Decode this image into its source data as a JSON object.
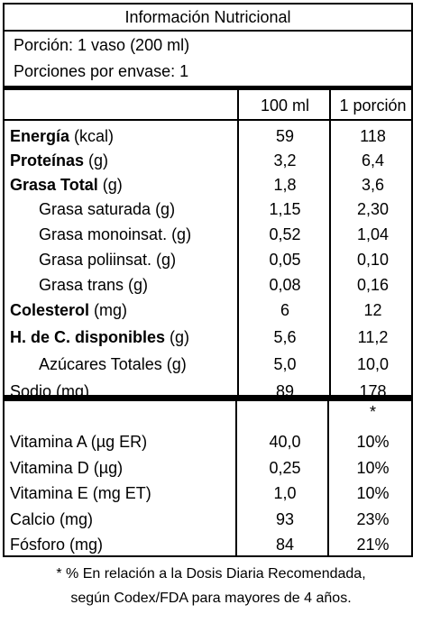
{
  "label": {
    "title": "Información Nutricional",
    "serving_size": "Porción:  1 vaso (200 ml)",
    "servings_per_container": "Porciones por envase:  1",
    "col_100ml": "100 ml",
    "col_portion": "1 porción",
    "nutrients": [
      {
        "name_bold": "Energía",
        "name_rest": " (kcal)",
        "v100": "59",
        "vport": "118"
      },
      {
        "name_bold": "Proteínas",
        "name_rest": " (g)",
        "v100": "3,2",
        "vport": "6,4"
      },
      {
        "name_bold": "Grasa Total",
        "name_rest": " (g)",
        "v100": "1,8",
        "vport": "3,6"
      },
      {
        "name_bold": "",
        "name_rest": "Grasa saturada (g)",
        "v100": "1,15",
        "vport": "2,30"
      },
      {
        "name_bold": "",
        "name_rest": "Grasa monoinsat. (g)",
        "v100": "0,52",
        "vport": "1,04"
      },
      {
        "name_bold": "",
        "name_rest": "Grasa poliinsat. (g)",
        "v100": "0,05",
        "vport": "0,10"
      },
      {
        "name_bold": "",
        "name_rest": "Grasa trans (g)",
        "v100": "0,08",
        "vport": "0,16"
      },
      {
        "name_bold": "Colesterol",
        "name_rest": " (mg)",
        "v100": "6",
        "vport": "12"
      },
      {
        "name_bold": "H. de C. disponibles",
        "name_rest": " (g)",
        "v100": "5,6",
        "vport": "11,2"
      },
      {
        "name_bold": "",
        "name_rest": "Azúcares Totales (g)",
        "v100": "5,0",
        "vport": "10,0"
      },
      {
        "name_bold": "",
        "name_rest": "Sodio (mg)",
        "v100": "89",
        "vport": "178"
      }
    ],
    "asterisk": "*",
    "vitamins": [
      {
        "name": "Vitamina A (µg ER)",
        "v100": "40,0",
        "vport": "10%"
      },
      {
        "name": "Vitamina D (µg)",
        "v100": "0,25",
        "vport": "10%"
      },
      {
        "name": "Vitamina E (mg ET)",
        "v100": "1,0",
        "vport": "10%"
      },
      {
        "name": "Calcio (mg)",
        "v100": "93",
        "vport": "23%"
      },
      {
        "name": "Fósforo (mg)",
        "v100": "84",
        "vport": "21%"
      }
    ],
    "footnote_line1": "* % En relación a la Dosis Diaria Recomendada,",
    "footnote_line2": "según Codex/FDA para mayores de 4 años."
  }
}
